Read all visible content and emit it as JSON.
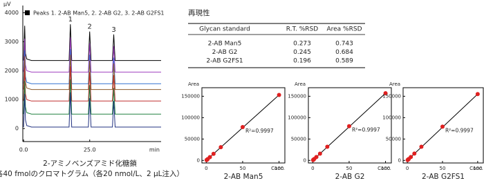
{
  "chart_data": [
    {
      "type": "line",
      "y_unit": "µV",
      "x_unit": "min",
      "legend_text": "Peaks  1. 2-AB Man5, 2. 2-AB G2, 3. 2-AB G2FS1",
      "peak_labels": [
        "1",
        "2",
        "3"
      ],
      "caption": [
        "2-アミノベンズアミド化糖鎖",
        "各40 fmolのクロマトグラム（各20 nmol/L、2 µL注入）"
      ],
      "x": [
        0,
        0.4,
        0.7,
        1.2,
        3,
        17.2,
        17.7,
        18.2,
        24.5,
        25.0,
        25.5,
        33.6,
        34.1,
        34.6,
        52
      ],
      "series": [
        {
          "color": "#000000",
          "values": [
            2350,
            3550,
            2600,
            2400,
            2350,
            2350,
            3600,
            2350,
            2350,
            3350,
            2350,
            2350,
            3250,
            2350,
            2350
          ]
        },
        {
          "color": "#a040c0",
          "values": [
            1950,
            3100,
            2200,
            2000,
            1950,
            1950,
            3150,
            1950,
            1950,
            2950,
            1950,
            1950,
            2850,
            1950,
            1950
          ]
        },
        {
          "color": "#3070d0",
          "values": [
            1550,
            2700,
            1800,
            1600,
            1550,
            1550,
            2750,
            1550,
            1550,
            2550,
            1550,
            1550,
            2450,
            1550,
            1550
          ]
        },
        {
          "color": "#8b5a2b",
          "values": [
            1350,
            2500,
            1600,
            1400,
            1350,
            1350,
            2550,
            1350,
            1350,
            2350,
            1350,
            1350,
            2250,
            1350,
            1350
          ]
        },
        {
          "color": "#c03030",
          "values": [
            950,
            2100,
            1200,
            1000,
            950,
            950,
            2150,
            950,
            950,
            1950,
            950,
            950,
            1850,
            950,
            950
          ]
        },
        {
          "color": "#208040",
          "values": [
            500,
            1650,
            750,
            550,
            500,
            500,
            1700,
            500,
            500,
            1500,
            500,
            500,
            1400,
            500,
            500
          ]
        },
        {
          "color": "#203080",
          "values": [
            50,
            1200,
            300,
            100,
            50,
            50,
            1250,
            50,
            50,
            1050,
            50,
            50,
            950,
            50,
            50
          ]
        }
      ],
      "xlim": [
        -0.3,
        52
      ],
      "ylim": [
        -450,
        4250
      ],
      "xticks": [
        {
          "value": 0,
          "label": "0.0"
        },
        {
          "value": 25,
          "label": "25.0"
        }
      ],
      "yticks": [
        0,
        1000,
        2000,
        3000,
        4000
      ]
    },
    {
      "type": "scatter",
      "title": "2-AB Man5",
      "x_label": "Conc.",
      "y_label": "Area",
      "r2_label": "R²=0.9997",
      "color": "#e02020",
      "x": [
        0.5,
        1,
        2,
        5,
        10,
        20,
        50,
        100
      ],
      "y": [
        800,
        1500,
        3100,
        7700,
        15300,
        31000,
        78000,
        153000
      ],
      "xlim": [
        -6,
        108
      ],
      "ylim": [
        -6000,
        170000
      ],
      "xticks": [
        0,
        50,
        100
      ],
      "yticks": [
        0,
        50000,
        100000,
        150000
      ]
    },
    {
      "type": "scatter",
      "title": "2-AB G2",
      "x_label": "Conc.",
      "y_label": "Area",
      "r2_label": "R²=0.9997",
      "color": "#e02020",
      "x": [
        0.5,
        1,
        2,
        5,
        10,
        20,
        50,
        100
      ],
      "y": [
        800,
        1600,
        3200,
        7900,
        15800,
        32000,
        80000,
        157000
      ],
      "xlim": [
        -6,
        108
      ],
      "ylim": [
        -6000,
        170000
      ],
      "xticks": [
        0,
        50,
        100
      ],
      "yticks": [
        0,
        50000,
        100000,
        150000
      ]
    },
    {
      "type": "scatter",
      "title": "2-AB G2FS1",
      "x_label": "Conc.",
      "y_label": "Area",
      "r2_label": "R²=0.9997",
      "color": "#e02020",
      "x": [
        0.5,
        1,
        2,
        5,
        10,
        20,
        50,
        100
      ],
      "y": [
        800,
        1600,
        3200,
        7900,
        15900,
        32000,
        79000,
        155000
      ],
      "xlim": [
        -6,
        108
      ],
      "ylim": [
        -6000,
        170000
      ],
      "xticks": [
        0,
        50,
        100
      ],
      "yticks": [
        0,
        50000,
        100000,
        150000
      ]
    }
  ],
  "table": {
    "title": "再現性",
    "header": [
      "Glycan standard",
      "R.T. %RSD",
      "Area %RSD"
    ],
    "rows": [
      [
        "2-AB Man5",
        "0.273",
        "0.743"
      ],
      [
        "2-AB G2",
        "0.245",
        "0.684"
      ],
      [
        "2-AB G2FS1",
        "0.196",
        "0.589"
      ]
    ]
  }
}
